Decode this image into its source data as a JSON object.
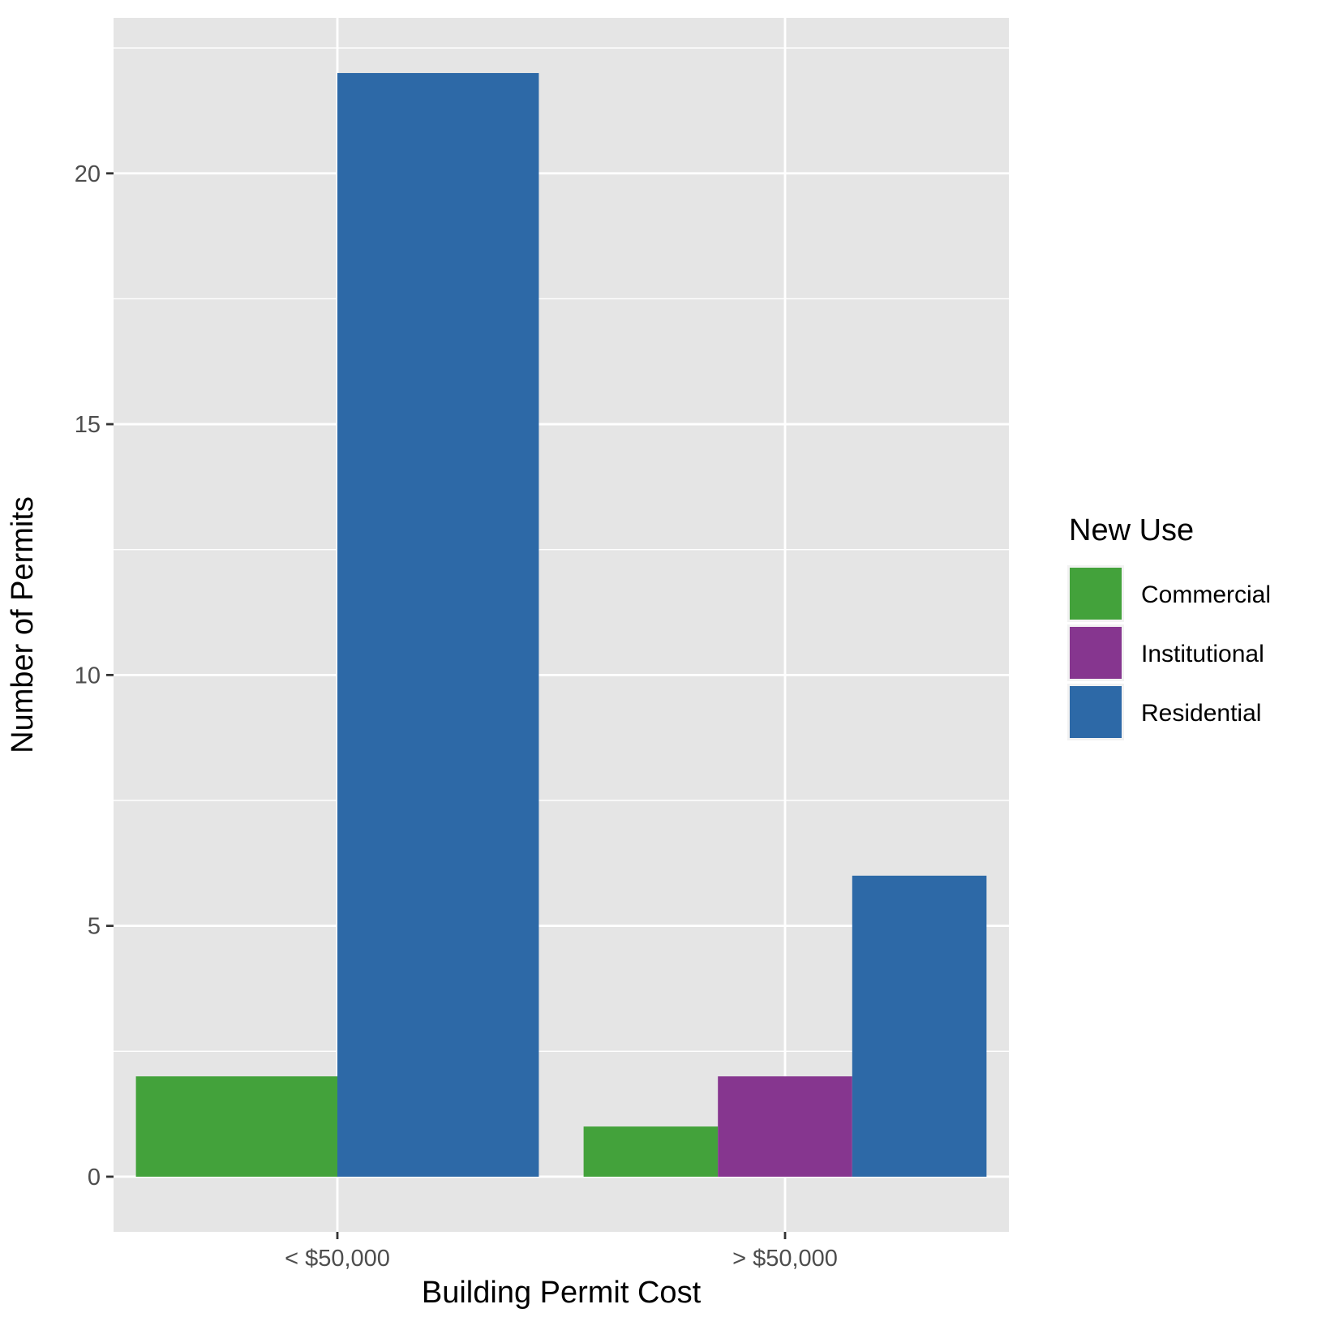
{
  "chart_data": {
    "type": "bar",
    "title": "",
    "xlabel": "Building Permit Cost",
    "ylabel": "Number of Permits",
    "categories": [
      "< $50,000",
      "> $50,000"
    ],
    "series": [
      {
        "name": "Commercial",
        "color": "#43a23b",
        "values": [
          2,
          1
        ]
      },
      {
        "name": "Institutional",
        "color": "#86368f",
        "values": [
          0,
          2
        ]
      },
      {
        "name": "Residential",
        "color": "#2d69a7",
        "values": [
          22,
          6
        ]
      }
    ],
    "ylim": [
      -1.1,
      23.1
    ],
    "yticks": [
      0,
      5,
      10,
      15,
      20
    ],
    "grid": true,
    "legend": {
      "title": "New Use",
      "position": "right"
    },
    "background": "#e5e5e5",
    "grid_color": "#ffffff"
  }
}
